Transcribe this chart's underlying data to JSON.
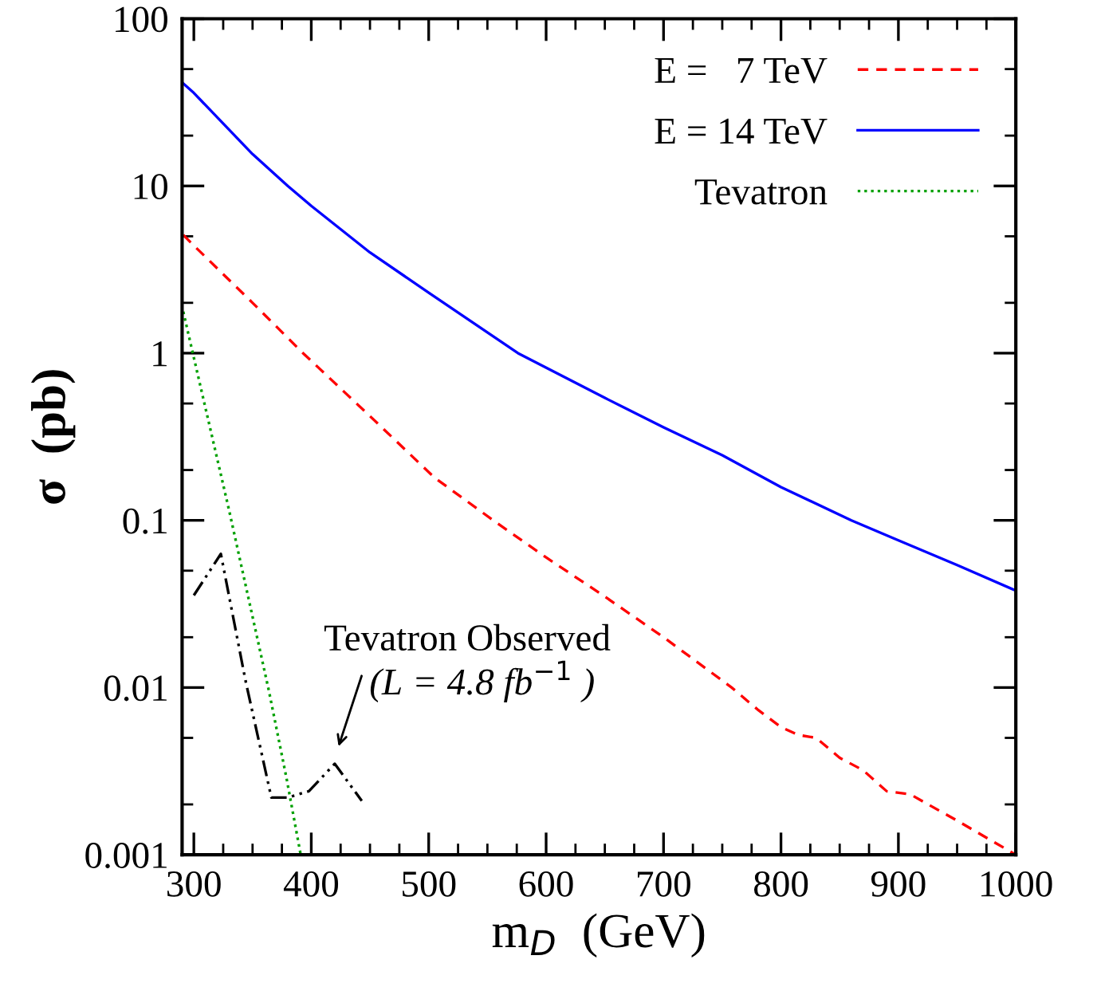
{
  "chart_data": {
    "type": "line",
    "xlabel": "m$_{D}$  (GeV)",
    "ylabel": "σ  (pb)",
    "log": "y",
    "xlim": [
      290,
      1000
    ],
    "xticks": [
      300,
      400,
      500,
      600,
      700,
      800,
      900,
      1000
    ],
    "ylim": [
      0.001,
      100
    ],
    "yticks": [
      0.001,
      0.01,
      0.1,
      1,
      10,
      100
    ],
    "legend": "top right",
    "grid": false,
    "series": [
      {
        "name": "E =   7 TeV",
        "color": "#ff0000",
        "line_style": "dashed",
        "x": [
          291,
          300,
          350,
          393,
          450,
          505,
          555,
          600,
          650,
          700,
          758,
          780,
          800,
          815,
          830,
          850,
          870,
          890,
          910,
          950,
          1000
        ],
        "values": [
          5.1,
          4.4,
          2.0,
          1.0,
          0.42,
          0.18,
          0.1,
          0.06,
          0.035,
          0.02,
          0.01,
          0.0074,
          0.0058,
          0.0052,
          0.005,
          0.0038,
          0.0032,
          0.0024,
          0.0023,
          0.0016,
          0.001
        ]
      },
      {
        "name": "E = 14 TeV",
        "color": "#0000ff",
        "line_style": "solid",
        "x": [
          291,
          300,
          350,
          380,
          400,
          450,
          500,
          576,
          650,
          700,
          750,
          800,
          860,
          900,
          950,
          1000
        ],
        "values": [
          41,
          36,
          15.5,
          10,
          7.6,
          4.0,
          2.3,
          1.0,
          0.54,
          0.36,
          0.245,
          0.158,
          0.1,
          0.076,
          0.054,
          0.038
        ]
      },
      {
        "name": "Tevatron",
        "color": "#00a000",
        "line_style": "dotted",
        "x": [
          291,
          300,
          330,
          364,
          379,
          391
        ],
        "values": [
          1.77,
          0.94,
          0.115,
          0.0095,
          0.00285,
          0.001
        ]
      },
      {
        "color": "#000000",
        "line_style": "dashdot",
        "x": [
          300,
          323,
          344,
          366,
          380,
          398,
          420,
          443
        ],
        "values": [
          0.0356,
          0.063,
          0.011,
          0.0022,
          0.0022,
          0.0024,
          0.0035,
          0.0021
        ]
      }
    ],
    "annotations": [
      "Tevatron Observed\n(L = 4.8 fb$^{−1}$ )"
    ]
  }
}
